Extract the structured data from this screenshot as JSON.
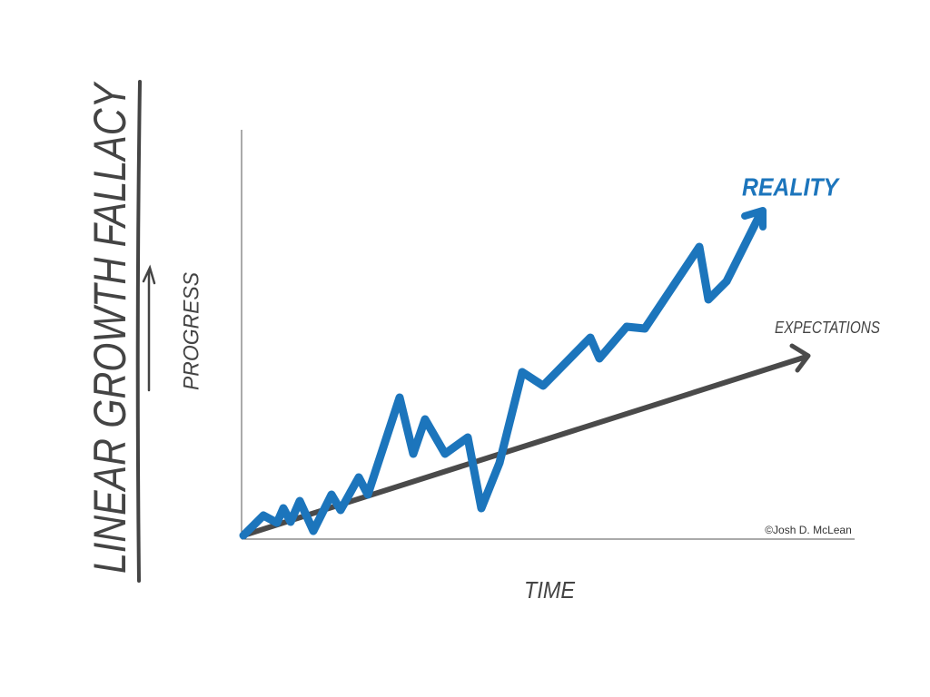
{
  "title": "LINEAR GROWTH FALLACY",
  "y_axis_label": "PROGRESS",
  "x_axis_label": "TIME",
  "reality_label": "REALITY",
  "expectations_label": "EXPECTATIONS",
  "credit": "©Josh D. McLean"
}
